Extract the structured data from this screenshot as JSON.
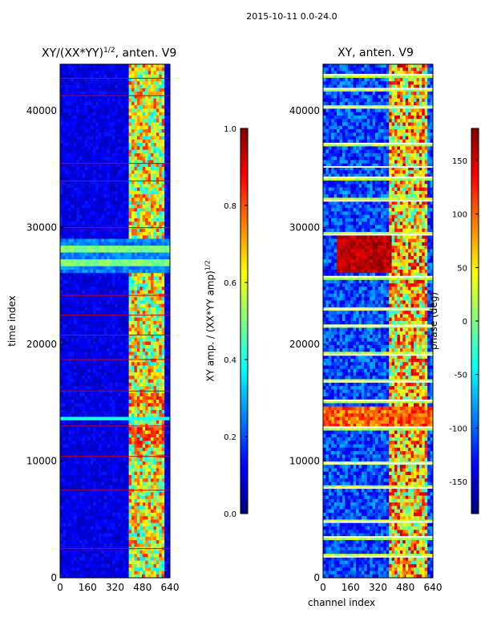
{
  "figure": {
    "suptitle": "2015-10-11 0.0-24.0",
    "xlabel": "channel index",
    "ylabel": "time index"
  },
  "colors": {
    "cmap_jet": [
      "#00007f",
      "#0000ff",
      "#007fff",
      "#00ffff",
      "#7fff7f",
      "#ffff00",
      "#ff7f00",
      "#ff0000",
      "#7f0000"
    ],
    "background": "#ffffff"
  },
  "chart_data": [
    {
      "type": "heatmap",
      "title": "XY/(XX*YY)$^{1/2}$, anten. V9",
      "title_text": "XY/(XX*YY)",
      "title_sup": "1/2",
      "title_tail": ", anten. V9",
      "xlabel": "",
      "ylabel": "time index",
      "xlim": [
        0,
        640
      ],
      "ylim": [
        0,
        44000
      ],
      "xticks": [
        0,
        160,
        320,
        480,
        640
      ],
      "yticks": [
        0,
        10000,
        20000,
        30000,
        40000
      ],
      "colorbar": {
        "label": "XY amp. / (XX*YY amp)",
        "label_sup": "1/2",
        "range": [
          0.0,
          1.0
        ],
        "ticks": [
          "0.0",
          "0.2",
          "0.4",
          "0.6",
          "0.8",
          "1.0"
        ]
      },
      "dominant_value": 0.1,
      "bright_channel_range": [
        400,
        610
      ],
      "bright_value": 0.6,
      "hot_bands_time": [
        [
          14800,
          15800
        ],
        [
          11200,
          12800
        ]
      ],
      "hot_value": 0.75,
      "stripe_band_time": [
        26000,
        29000
      ],
      "stripe_value": 0.4,
      "red_line_times": [
        2500,
        7500,
        10400,
        13000,
        16000,
        18700,
        20800,
        22500,
        24200,
        30000,
        34000,
        35500,
        41300,
        42800
      ]
    },
    {
      "type": "heatmap",
      "title": "XY, anten. V9",
      "xlabel": "channel index",
      "ylabel": "",
      "xlim": [
        0,
        640
      ],
      "ylim": [
        0,
        44000
      ],
      "xticks": [
        0,
        160,
        320,
        480,
        640
      ],
      "yticks": [
        0,
        10000,
        20000,
        30000,
        40000
      ],
      "colorbar": {
        "label": "phase (deg)",
        "range": [
          -180,
          180
        ],
        "ticks": [
          "-150",
          "-100",
          "-50",
          "0",
          "50",
          "100",
          "150"
        ]
      },
      "dominant_value": -110,
      "bright_channel_range": [
        390,
        600
      ],
      "bright_value": 60,
      "hot_band_time": [
        26000,
        29500
      ],
      "hot_channel_range": [
        80,
        400
      ],
      "hot_value": 160,
      "white_line_times": [
        1800,
        3500,
        4800,
        7700,
        9800,
        12900,
        15200,
        16800,
        19100,
        21600,
        23000,
        25800,
        29400,
        32300,
        34300,
        35200,
        37200,
        40300,
        41900,
        43100
      ]
    }
  ]
}
